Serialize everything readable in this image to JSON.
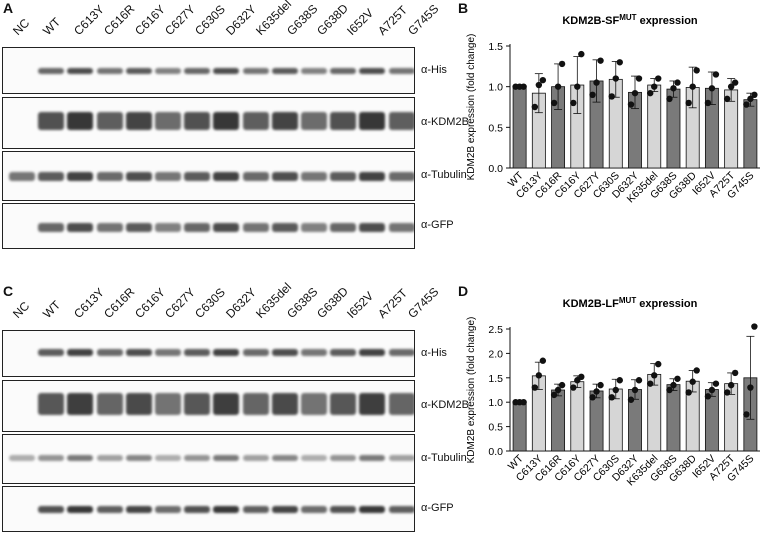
{
  "figure": {
    "panels": {
      "A": "A",
      "B": "B",
      "C": "C",
      "D": "D"
    },
    "blotA": {
      "lanes": [
        "NC",
        "WT",
        "C613Y",
        "C616R",
        "C616Y",
        "C627Y",
        "C630S",
        "D632Y",
        "K635del",
        "G638S",
        "G638D",
        "I652V",
        "A725T",
        "G745S"
      ],
      "antibodies": [
        "α-His",
        "α-KDM2B",
        "α-Tubulin",
        "α-GFP"
      ]
    },
    "blotC": {
      "lanes": [
        "NC",
        "WT",
        "C613Y",
        "C616R",
        "C616Y",
        "C627Y",
        "C630S",
        "D632Y",
        "K635del",
        "G638S",
        "G638D",
        "I652V",
        "A725T",
        "G745S"
      ],
      "antibodies": [
        "α-His",
        "α-KDM2B",
        "α-Tubulin",
        "α-GFP"
      ]
    }
  },
  "chart_data": [
    {
      "type": "bar",
      "title_main": "KDM2B-SF",
      "title_sup": "MUT",
      "title_tail": " expression",
      "ylabel": "KDM2B expression (fold change)",
      "categories": [
        "WT",
        "C613Y",
        "C616R",
        "C616Y",
        "C627Y",
        "C630S",
        "D632Y",
        "K635del",
        "G638S",
        "G638D",
        "I652V",
        "A725T",
        "G745S"
      ],
      "values": [
        1.0,
        0.92,
        1.0,
        1.02,
        1.07,
        1.09,
        0.93,
        1.02,
        0.97,
        0.99,
        0.98,
        0.96,
        0.84
      ],
      "error": [
        0.0,
        0.24,
        0.28,
        0.35,
        0.26,
        0.22,
        0.2,
        0.08,
        0.1,
        0.25,
        0.2,
        0.14,
        0.08
      ],
      "points": [
        [
          1,
          1,
          1
        ],
        [
          0.75,
          1.02,
          1.08
        ],
        [
          0.8,
          1.0,
          1.28
        ],
        [
          0.8,
          1.0,
          1.4
        ],
        [
          0.9,
          1.05,
          1.32
        ],
        [
          0.88,
          1.1,
          1.3
        ],
        [
          0.78,
          0.92,
          1.1
        ],
        [
          0.92,
          1.0,
          1.1
        ],
        [
          0.85,
          0.98,
          1.05
        ],
        [
          0.8,
          1.0,
          1.2
        ],
        [
          0.8,
          0.98,
          1.15
        ],
        [
          0.85,
          1.0,
          1.05
        ],
        [
          0.78,
          0.85,
          0.9
        ]
      ],
      "ylim": [
        0,
        1.5
      ],
      "yticks": [
        "0.0",
        "0.5",
        "1.0",
        "1.5"
      ],
      "colors": [
        "#7a7a7a",
        "#d6d6d6"
      ]
    },
    {
      "type": "bar",
      "title_main": "KDM2B-LF",
      "title_sup": "MUT",
      "title_tail": " expression",
      "ylabel": "KDM2B expression (fold change)",
      "categories": [
        "WT",
        "C613Y",
        "C616R",
        "C616Y",
        "C627Y",
        "C630S",
        "D632Y",
        "K635del",
        "G638S",
        "G638D",
        "I652V",
        "A725T",
        "G745S"
      ],
      "values": [
        1.0,
        1.54,
        1.25,
        1.42,
        1.23,
        1.27,
        1.26,
        1.57,
        1.36,
        1.43,
        1.26,
        1.38,
        1.5
      ],
      "error": [
        0.0,
        0.28,
        0.12,
        0.12,
        0.14,
        0.2,
        0.2,
        0.22,
        0.12,
        0.22,
        0.14,
        0.22,
        0.85
      ],
      "points": [
        [
          1,
          1,
          1
        ],
        [
          1.3,
          1.55,
          1.85
        ],
        [
          1.15,
          1.25,
          1.35
        ],
        [
          1.3,
          1.45,
          1.52
        ],
        [
          1.1,
          1.22,
          1.35
        ],
        [
          1.1,
          1.25,
          1.45
        ],
        [
          1.05,
          1.25,
          1.45
        ],
        [
          1.38,
          1.55,
          1.78
        ],
        [
          1.25,
          1.35,
          1.48
        ],
        [
          1.2,
          1.42,
          1.65
        ],
        [
          1.12,
          1.25,
          1.38
        ],
        [
          1.2,
          1.35,
          1.6
        ],
        [
          0.75,
          1.3,
          2.55
        ]
      ],
      "ylim": [
        0,
        2.5
      ],
      "yticks": [
        "0.0",
        "0.5",
        "1.0",
        "1.5",
        "2.0",
        "2.5"
      ],
      "colors": [
        "#7a7a7a",
        "#d6d6d6"
      ]
    }
  ]
}
